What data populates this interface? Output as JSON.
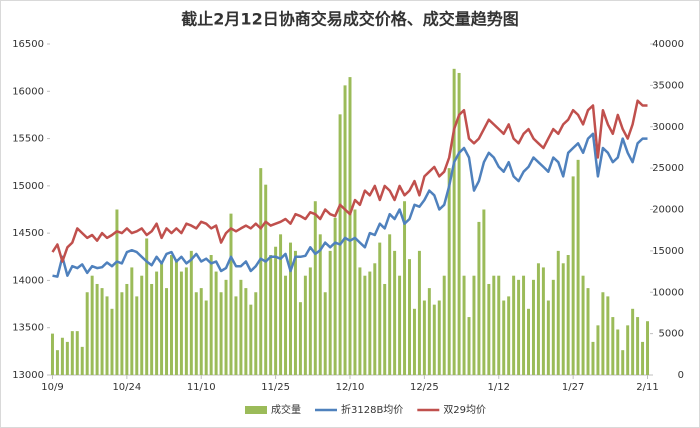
{
  "chart_data": {
    "type": "combo",
    "title": "截止2月12日协商交易成交价格、成交量趋势图",
    "categories": [
      "10/9",
      null,
      null,
      null,
      null,
      null,
      null,
      null,
      null,
      null,
      null,
      null,
      null,
      null,
      null,
      "10/24",
      null,
      null,
      null,
      null,
      null,
      null,
      null,
      null,
      null,
      null,
      null,
      null,
      null,
      null,
      "11/10",
      null,
      null,
      null,
      null,
      null,
      null,
      null,
      null,
      null,
      null,
      null,
      null,
      null,
      null,
      "11/25",
      null,
      null,
      null,
      null,
      null,
      null,
      null,
      null,
      null,
      null,
      null,
      null,
      null,
      null,
      "12/10",
      null,
      null,
      null,
      null,
      null,
      null,
      null,
      null,
      null,
      null,
      null,
      null,
      null,
      null,
      "12/25",
      null,
      null,
      null,
      null,
      null,
      null,
      null,
      null,
      null,
      null,
      null,
      null,
      null,
      null,
      "1/12",
      null,
      null,
      null,
      null,
      null,
      null,
      null,
      null,
      null,
      null,
      null,
      null,
      null,
      null,
      "1/27",
      null,
      null,
      null,
      null,
      null,
      null,
      null,
      null,
      null,
      null,
      null,
      null,
      null,
      null,
      "2/11"
    ],
    "ylim": [
      13000,
      16500
    ],
    "yticks": [
      13000,
      13500,
      14000,
      14500,
      15000,
      15500,
      16000,
      16500
    ],
    "y2lim": [
      0,
      40000
    ],
    "y2ticks": [
      0,
      5000,
      10000,
      15000,
      20000,
      25000,
      30000,
      35000,
      40000
    ],
    "legend": "bottom",
    "series": [
      {
        "name": "成交量",
        "type": "bar",
        "axis": "y2",
        "color": "#9bbb59",
        "values": [
          5000,
          3000,
          4500,
          4000,
          5300,
          5300,
          3400,
          10000,
          12000,
          11000,
          10500,
          9500,
          8000,
          20000,
          10000,
          11000,
          13000,
          9500,
          12000,
          16500,
          11000,
          12500,
          13500,
          10500,
          14500,
          14000,
          12500,
          13000,
          15000,
          10000,
          10500,
          9000,
          14500,
          12500,
          10000,
          11500,
          19500,
          9500,
          11500,
          10500,
          8500,
          10000,
          25000,
          23000,
          14500,
          15500,
          17000,
          12000,
          16000,
          15000,
          8800,
          12000,
          13000,
          21000,
          17000,
          10000,
          15000,
          19000,
          31500,
          35000,
          36000,
          20000,
          13000,
          12000,
          12500,
          13500,
          16000,
          11000,
          17000,
          15000,
          12000,
          21000,
          14000,
          8000,
          15000,
          9000,
          10500,
          8500,
          9000,
          12000,
          25000,
          37000,
          36500,
          12000,
          7000,
          12000,
          18500,
          20000,
          11000,
          12000,
          12000,
          9000,
          9500,
          12000,
          11500,
          12000,
          8000,
          11500,
          13500,
          13000,
          9000,
          11500,
          15000,
          13500,
          14500,
          24000,
          26000,
          12000,
          10500,
          4000,
          6000,
          10000,
          9500,
          7000,
          5500,
          3000,
          6000,
          8000,
          7000,
          4000,
          6500
        ]
      },
      {
        "name": "折3128B均价",
        "type": "line",
        "color": "#4f81bd",
        "values": [
          14050,
          14040,
          14250,
          14050,
          14150,
          14130,
          14170,
          14080,
          14150,
          14130,
          14140,
          14190,
          14150,
          14200,
          14180,
          14300,
          14320,
          14300,
          14250,
          14200,
          14160,
          14250,
          14180,
          14280,
          14300,
          14200,
          14250,
          14180,
          14220,
          14280,
          14200,
          14230,
          14180,
          14200,
          14100,
          14130,
          14250,
          14150,
          14150,
          14200,
          14100,
          14150,
          14230,
          14200,
          14250,
          14250,
          14230,
          14280,
          14100,
          14250,
          14250,
          14260,
          14350,
          14280,
          14320,
          14400,
          14350,
          14400,
          14380,
          14450,
          14420,
          14450,
          14400,
          14350,
          14500,
          14480,
          14600,
          14550,
          14700,
          14650,
          14750,
          14600,
          14650,
          14800,
          14780,
          14850,
          14950,
          14900,
          14750,
          14800,
          15000,
          15250,
          15350,
          15400,
          15300,
          14950,
          15050,
          15250,
          15350,
          15300,
          15200,
          15150,
          15250,
          15100,
          15050,
          15150,
          15200,
          15300,
          15250,
          15200,
          15150,
          15300,
          15250,
          15100,
          15350,
          15400,
          15450,
          15350,
          15500,
          15550,
          15100,
          15400,
          15350,
          15250,
          15300,
          15500,
          15350,
          15250,
          15450,
          15500,
          15500
        ]
      },
      {
        "name": "双29均价",
        "type": "line",
        "color": "#c0504d",
        "values": [
          14300,
          14380,
          14200,
          14350,
          14400,
          14550,
          14500,
          14450,
          14480,
          14420,
          14500,
          14450,
          14480,
          14520,
          14500,
          14550,
          14500,
          14520,
          14550,
          14480,
          14520,
          14600,
          14450,
          14550,
          14500,
          14550,
          14500,
          14600,
          14580,
          14550,
          14620,
          14600,
          14550,
          14580,
          14400,
          14500,
          14550,
          14520,
          14550,
          14580,
          14550,
          14600,
          14550,
          14620,
          14580,
          14600,
          14620,
          14650,
          14600,
          14700,
          14680,
          14650,
          14720,
          14700,
          14650,
          14750,
          14700,
          14680,
          14800,
          14750,
          14700,
          14850,
          14800,
          14950,
          14900,
          15000,
          14850,
          15000,
          14950,
          14850,
          15000,
          14900,
          14950,
          15050,
          14900,
          15100,
          15150,
          15200,
          15100,
          15150,
          15300,
          15600,
          15750,
          15800,
          15500,
          15450,
          15500,
          15600,
          15700,
          15650,
          15600,
          15550,
          15650,
          15500,
          15450,
          15550,
          15600,
          15500,
          15450,
          15400,
          15500,
          15600,
          15550,
          15650,
          15700,
          15800,
          15750,
          15650,
          15800,
          15850,
          15300,
          15800,
          15650,
          15550,
          15750,
          15600,
          15500,
          15650,
          15900,
          15850,
          15850
        ]
      }
    ]
  }
}
